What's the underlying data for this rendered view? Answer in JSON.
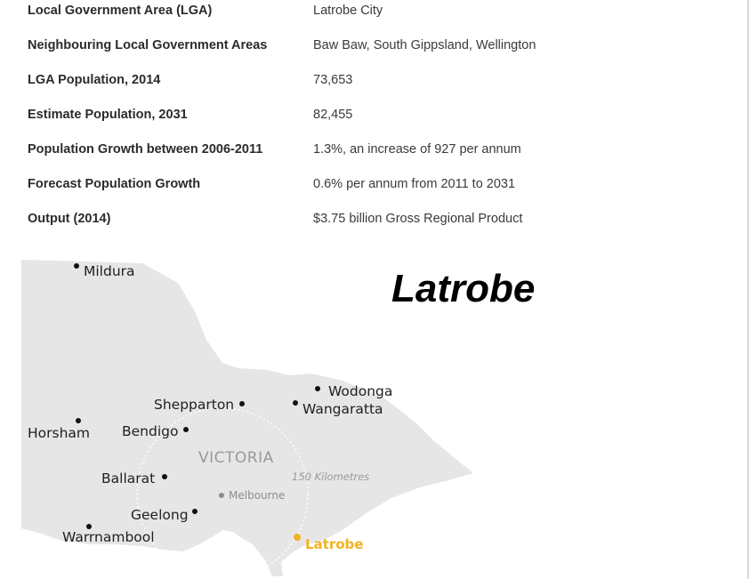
{
  "facts": [
    {
      "label": "Local Government Area (LGA)",
      "value": "Latrobe City"
    },
    {
      "label": "Neighbouring Local Government Areas",
      "value": "Baw Baw, South Gippsland, Wellington"
    },
    {
      "label": "LGA Population, 2014",
      "value": "73,653"
    },
    {
      "label": "Estimate Population, 2031",
      "value": "82,455"
    },
    {
      "label": "Population Growth between 2006-2011",
      "value": "1.3%, an increase of 927 per annum"
    },
    {
      "label": "Forecast Population Growth",
      "value": "0.6% per annum from 2011 to 2031"
    },
    {
      "label": "Output (2014)",
      "value": "$3.75 billion Gross Regional Product"
    }
  ],
  "map": {
    "title": "Latrobe",
    "state_label": "VICTORIA",
    "range_label": "150 Kilometres",
    "highlight_color": "#f0b323",
    "land_color": "#e6e6e6",
    "cities": {
      "mildura": "Mildura",
      "wodonga": "Wodonga",
      "wangaratta": "Wangaratta",
      "shepparton": "Shepparton",
      "horsham": "Horsham",
      "bendigo": "Bendigo",
      "ballarat": "Ballarat",
      "melbourne": "Melbourne",
      "geelong": "Geelong",
      "warrnambool": "Warrnambool",
      "latrobe": "Latrobe"
    }
  }
}
